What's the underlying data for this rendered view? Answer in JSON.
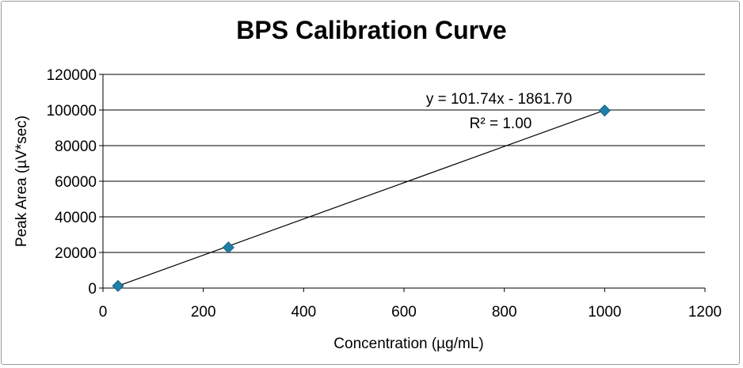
{
  "chart_data": {
    "type": "scatter",
    "title": "BPS Calibration Curve",
    "xlabel": "Concentration (µg/mL)",
    "ylabel": "Peak Area (µV*sec)",
    "xlim": [
      0,
      1200
    ],
    "ylim": [
      0,
      120000
    ],
    "xticks": [
      0,
      200,
      400,
      600,
      800,
      1000,
      1200
    ],
    "yticks": [
      0,
      20000,
      40000,
      60000,
      80000,
      100000,
      120000
    ],
    "grid": "horizontal",
    "legend": "none",
    "series": [
      {
        "x": [
          30,
          250,
          1000
        ],
        "y": [
          1200,
          22800,
          99700
        ],
        "color": "#1e7fa8",
        "marker": "diamond"
      }
    ],
    "trendline": {
      "type": "linear",
      "slope": 101.74,
      "intercept": -1861.7,
      "x_range": [
        30,
        1000
      ],
      "color": "#000000"
    },
    "annotations": {
      "equation": "y = 101.74x - 1861.70",
      "r_squared": "R² = 1.00"
    }
  }
}
